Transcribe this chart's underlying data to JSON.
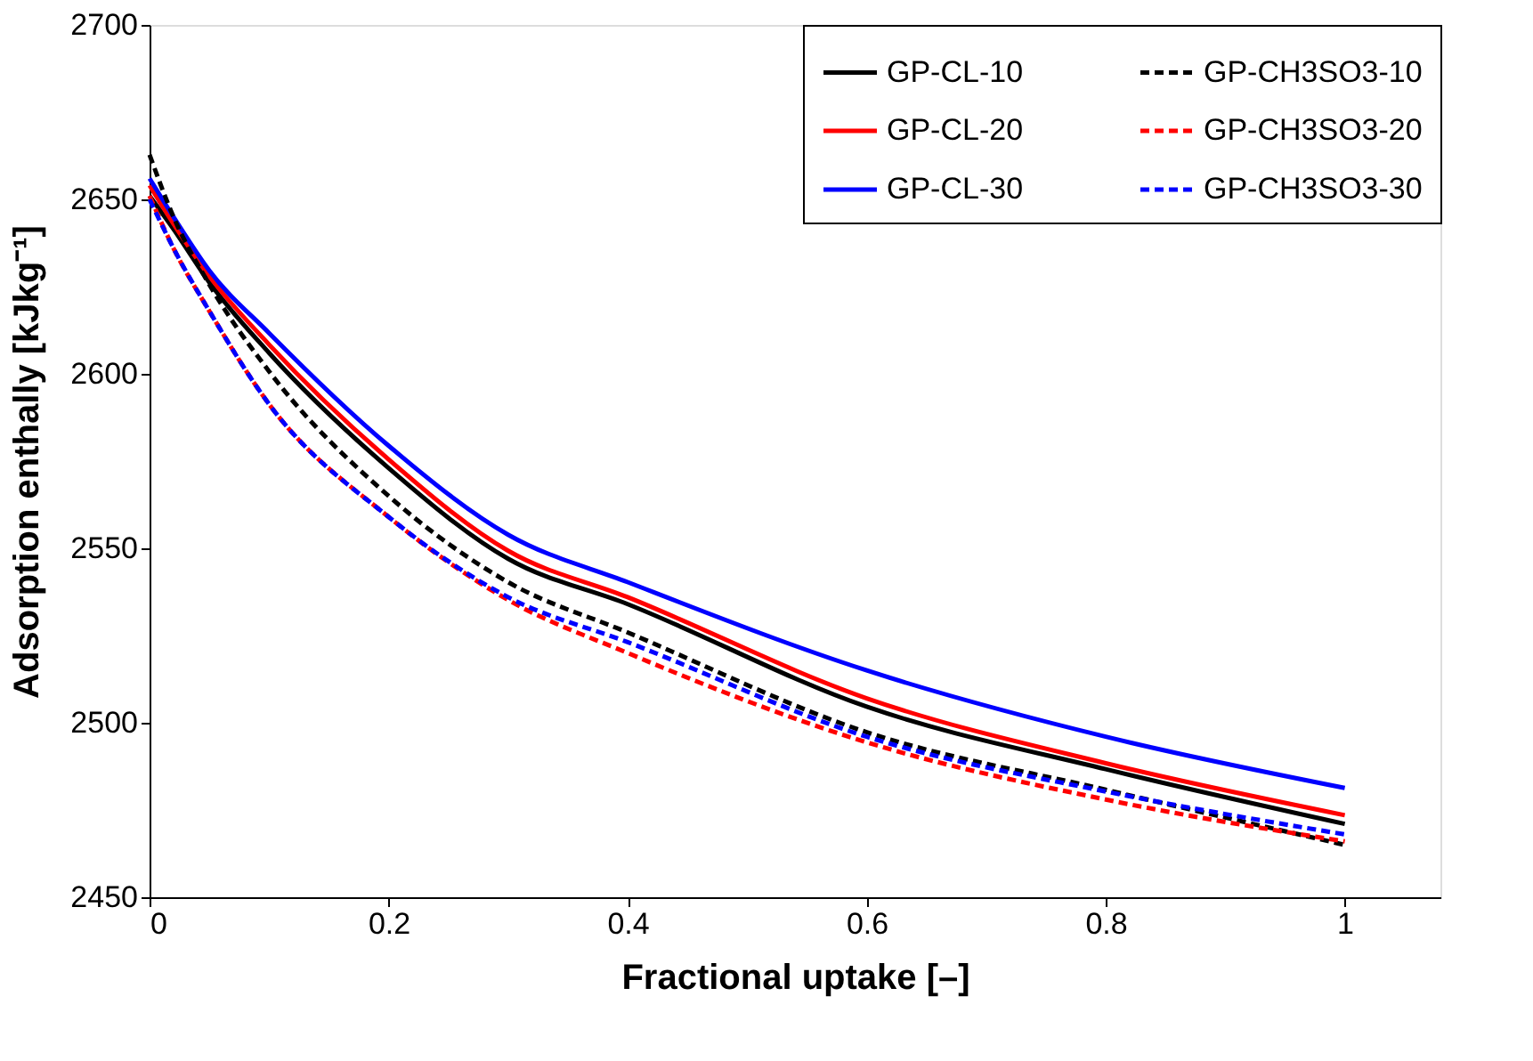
{
  "chart_data": {
    "type": "line",
    "xlabel": "Fractional uptake [–]",
    "ylabel": "Adsorption enthally [kJkg⁻¹]",
    "xlim": [
      0,
      1.08
    ],
    "xticks": [
      0,
      0.2,
      0.4,
      0.6,
      0.8,
      1
    ],
    "ylim": [
      2450,
      2700
    ],
    "yticks": [
      2450,
      2500,
      2550,
      2600,
      2650,
      2700
    ],
    "grid": false,
    "legend": "top right",
    "marker": "none",
    "x": [
      0,
      0.02,
      0.05,
      0.1,
      0.2,
      0.3,
      0.4,
      0.6,
      0.8,
      1
    ],
    "series": [
      {
        "name": "GP-CL-10",
        "color": "#000000",
        "line_style": "solid",
        "values": [
          2651,
          2641.5,
          2626.2,
          2606,
          2573,
          2547,
          2534,
          2504.6,
          2486.7,
          2471
        ]
      },
      {
        "name": "GP-CL-20",
        "color": "#ff0000",
        "line_style": "solid",
        "values": [
          2654,
          2643,
          2628,
          2608.4,
          2575.5,
          2549.3,
          2536,
          2507,
          2488.4,
          2473.5
        ]
      },
      {
        "name": "GP-CL-30",
        "color": "#0000ff",
        "line_style": "solid",
        "values": [
          2656,
          2645,
          2629.6,
          2611.7,
          2579.4,
          2553.9,
          2540.3,
          2515,
          2496,
          2481.3
        ]
      },
      {
        "name": "GP-CH3SO3-10",
        "color": "#000000",
        "line_style": "dashed",
        "values": [
          2662.8,
          2645,
          2625.6,
          2600.7,
          2565,
          2540.3,
          2525.9,
          2497.3,
          2480.8,
          2465
        ]
      },
      {
        "name": "GP-CH3SO3-20",
        "color": "#ff0000",
        "line_style": "dashed",
        "values": [
          2651,
          2636,
          2618,
          2591.3,
          2559,
          2535.2,
          2520,
          2494.4,
          2478,
          2466
        ]
      },
      {
        "name": "GP-CH3SO3-30",
        "color": "#0000ff",
        "line_style": "dashed",
        "values": [
          2650,
          2636,
          2618,
          2591.3,
          2559,
          2536,
          2523.1,
          2496,
          2480.3,
          2468
        ]
      }
    ]
  }
}
